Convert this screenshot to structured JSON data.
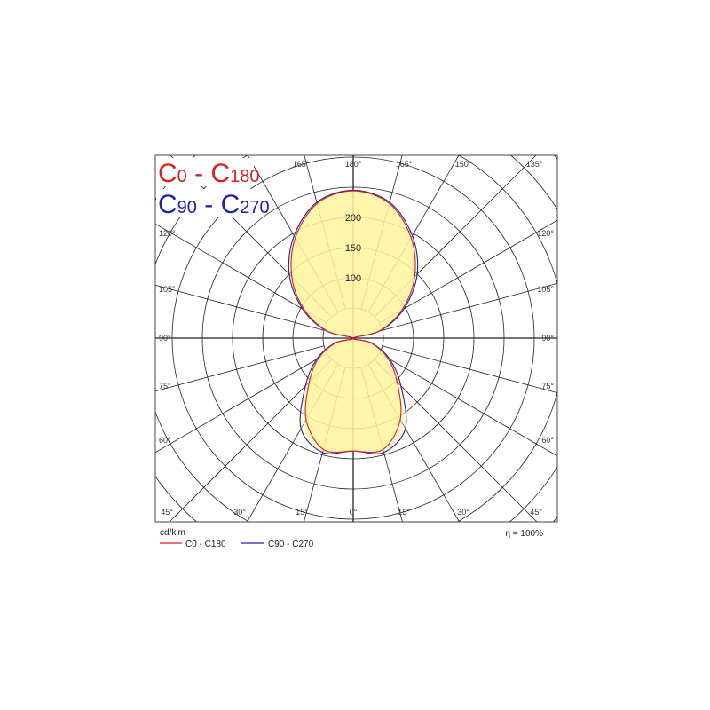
{
  "chart_data": {
    "type": "polar",
    "unit_label": "cd/klm",
    "efficiency_label": "η = 100%",
    "radial_ticks": [
      "100",
      "150",
      "200"
    ],
    "radial_tick_values": [
      100,
      150,
      200
    ],
    "ring_step": 50,
    "angle_labels": {
      "top": [
        "165°",
        "180°",
        "165°",
        "150°",
        "135°"
      ],
      "left": [
        "120°",
        "105°",
        "90°",
        "75°",
        "60°"
      ],
      "right": [
        "120°",
        "105°",
        "90°",
        "75°",
        "60°"
      ],
      "bottom": [
        "45°",
        "30°",
        "15°",
        "0°",
        "15°",
        "30°",
        "45°"
      ]
    },
    "angles": [
      0,
      15,
      30,
      45,
      60,
      75,
      90,
      105,
      120,
      135,
      150,
      165,
      180
    ],
    "series": [
      {
        "name": "C0 - C180",
        "color": "#d62020",
        "values": [
          187,
          191,
          156,
          103,
          66,
          30,
          0,
          44,
          93,
          144,
          192,
          231,
          244
        ]
      },
      {
        "name": "C90 - C270",
        "color": "#2020b0",
        "values": [
          187,
          196,
          173,
          112,
          70,
          32,
          0,
          46,
          97,
          150,
          196,
          233,
          245
        ]
      }
    ],
    "big_legend": [
      {
        "c": "C",
        "a": "0",
        "dash": " - ",
        "c2": "C",
        "b": "180",
        "color": "#d62020"
      },
      {
        "c": "C",
        "a": "90",
        "dash": " - ",
        "c2": "C",
        "b": "270",
        "color": "#2020b0"
      }
    ],
    "fill_color": "#fff59d",
    "grid": true
  }
}
